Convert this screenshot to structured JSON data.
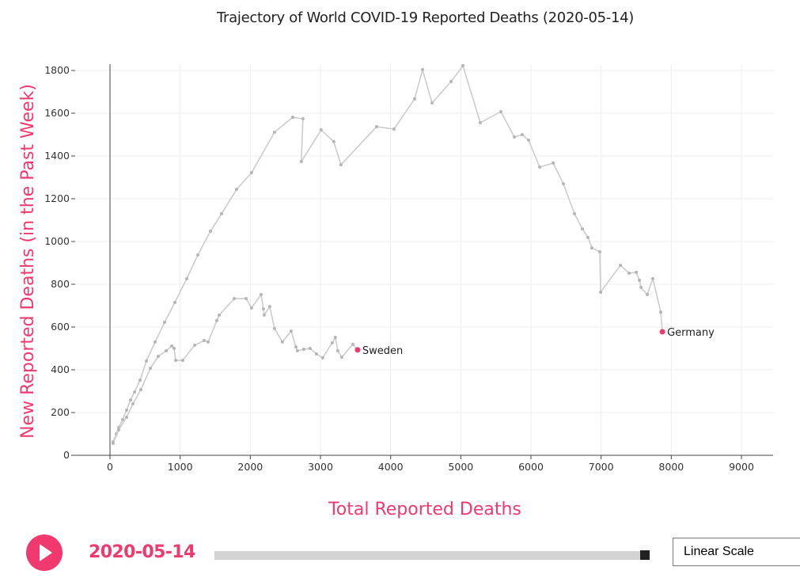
{
  "title": "Trajectory of World COVID-19 Reported Deaths (2020-05-14)",
  "colors": {
    "accent": "#f0396e",
    "line": "#cccccc",
    "point": "#b5b5b5",
    "grid": "#eeeeee"
  },
  "controls": {
    "play_icon": "play-icon",
    "date": "2020-05-14",
    "slider_progress": 1.0,
    "scale_option": "Linear Scale"
  },
  "chart_data": {
    "type": "line",
    "title": "Trajectory of World COVID-19 Reported Deaths (2020-05-14)",
    "xlabel": "Total Reported Deaths",
    "ylabel": "New Reported Deaths (in the Past Week)",
    "xlim": [
      -500,
      9500
    ],
    "ylim": [
      0,
      1800
    ],
    "grid": true,
    "x_ticks": [
      0,
      1000,
      2000,
      3000,
      4000,
      5000,
      6000,
      7000,
      8000,
      9000
    ],
    "y_ticks": [
      0,
      200,
      400,
      600,
      800,
      1000,
      1200,
      1400,
      1600,
      1800
    ],
    "x_tick_labels": [
      "0",
      "1000",
      "2000",
      "3000",
      "4000",
      "5000",
      "6000",
      "7000",
      "8000",
      "9000"
    ],
    "y_tick_labels": [
      "0",
      "200",
      "400",
      "600",
      "800",
      "1000",
      "1200",
      "1400",
      "1600",
      "1800"
    ],
    "series": [
      {
        "name": "Germany",
        "x": [
          45,
          90,
          124,
          180,
          237,
          293,
          350,
          429,
          519,
          643,
          778,
          925,
          1094,
          1252,
          1432,
          1590,
          1804,
          2018,
          2345,
          2604,
          2750,
          2727,
          3009,
          3190,
          3292,
          3800,
          4048,
          4342,
          4455,
          4590,
          4861,
          5030,
          5278,
          5571,
          5763,
          5875,
          5966,
          6124,
          6316,
          6462,
          6620,
          6733,
          6812,
          6868,
          6981,
          6993,
          7275,
          7400,
          7501,
          7546,
          7568,
          7658,
          7737,
          7850,
          7873
        ],
        "y": [
          63,
          100,
          130,
          167,
          211,
          259,
          296,
          352,
          441,
          530,
          622,
          715,
          826,
          937,
          1048,
          1130,
          1244,
          1322,
          1511,
          1581,
          1574,
          1374,
          1522,
          1467,
          1359,
          1537,
          1526,
          1667,
          1804,
          1648,
          1748,
          1822,
          1556,
          1607,
          1489,
          1500,
          1474,
          1348,
          1367,
          1270,
          1130,
          1059,
          1019,
          970,
          952,
          763,
          889,
          852,
          856,
          819,
          785,
          752,
          826,
          670,
          578
        ],
        "end_label": "Germany"
      },
      {
        "name": "Sweden",
        "x": [
          45,
          124,
          237,
          327,
          440,
          575,
          688,
          801,
          880,
          914,
          936,
          1037,
          1207,
          1342,
          1398,
          1522,
          1556,
          1771,
          1940,
          2018,
          2153,
          2187,
          2198,
          2277,
          2345,
          2458,
          2582,
          2650,
          2672,
          2762,
          2852,
          2942,
          3032,
          3167,
          3212,
          3246,
          3303,
          3461,
          3529
        ],
        "y": [
          56,
          119,
          178,
          241,
          307,
          407,
          463,
          489,
          511,
          500,
          444,
          444,
          515,
          537,
          530,
          630,
          656,
          733,
          733,
          689,
          752,
          685,
          656,
          696,
          593,
          530,
          581,
          507,
          489,
          496,
          500,
          474,
          456,
          526,
          552,
          489,
          459,
          519,
          493
        ],
        "end_label": "Sweden"
      }
    ]
  }
}
